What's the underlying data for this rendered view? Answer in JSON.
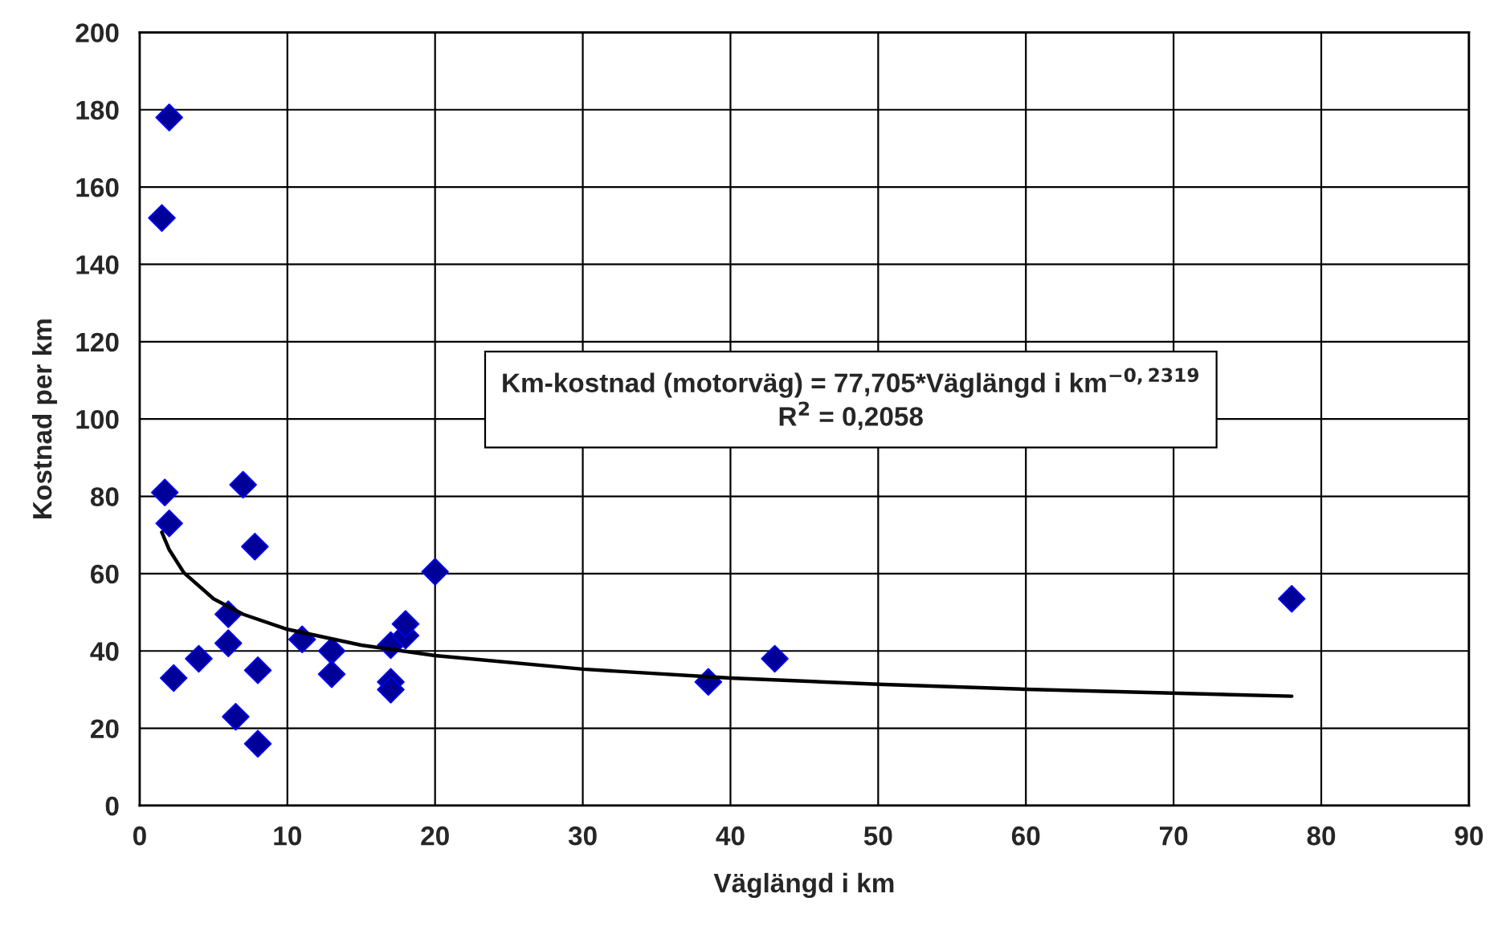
{
  "chart_data": {
    "type": "scatter",
    "xlabel": "Väglängd i km",
    "ylabel": "Kostnad per km",
    "xlim": [
      0,
      90
    ],
    "xticks": [
      0,
      10,
      20,
      30,
      40,
      50,
      60,
      70,
      80,
      90
    ],
    "ylim": [
      0,
      200
    ],
    "yticks": [
      0,
      20,
      40,
      60,
      80,
      100,
      120,
      140,
      160,
      180,
      200
    ],
    "grid": true,
    "legend": false,
    "marker": "diamond",
    "annotations": [
      "Km-kostnad (motorväg) = 77,705*Väglängd i km$^{−0,2319}$\nR$^{2}$ = 0,2058"
    ],
    "series": [
      {
        "color": "#000099",
        "x": [
          1.5,
          2,
          1.7,
          2,
          2.3,
          4,
          6,
          6,
          6.5,
          7,
          7.8,
          8,
          8,
          11,
          13,
          13,
          17,
          17,
          17,
          18,
          18,
          20,
          38.5,
          43,
          78
        ],
        "values": [
          152,
          178,
          81,
          73,
          33,
          38,
          42,
          49.5,
          23,
          83,
          67,
          35,
          16,
          43,
          40,
          34,
          41.5,
          32,
          30,
          44,
          47,
          60.5,
          32,
          38,
          53.5
        ]
      },
      {
        "type": "line",
        "color": "#000000",
        "marker": "none",
        "x": [
          1.5,
          2,
          3,
          5,
          7,
          10,
          15,
          20,
          30,
          40,
          50,
          60,
          78
        ],
        "values": [
          70.7,
          66.2,
          60.2,
          53.5,
          49.5,
          45.6,
          41.5,
          38.8,
          35.3,
          33.0,
          31.4,
          30.1,
          28.3
        ]
      }
    ]
  }
}
